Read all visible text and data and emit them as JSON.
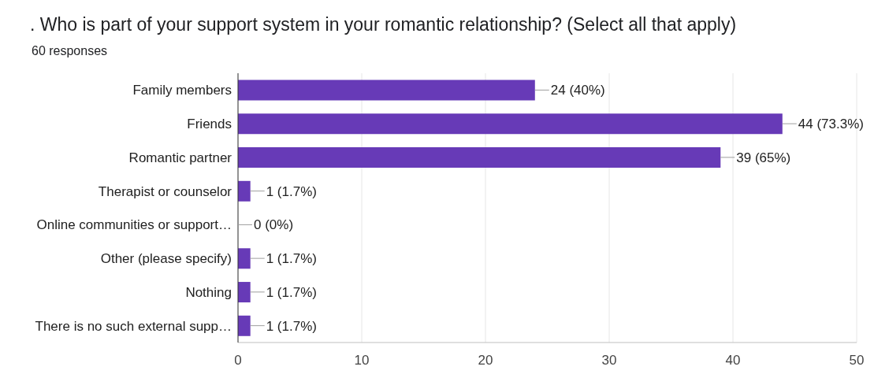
{
  "chart_data": {
    "type": "bar",
    "orientation": "horizontal",
    "title": ". Who is part of your support system in your romantic relationship? (Select all that apply)",
    "subtitle": "60 responses",
    "categories": [
      "Family members",
      "Friends",
      "Romantic partner",
      "Therapist or counselor",
      "Online communities or support…",
      "Other (please specify)",
      "Nothing",
      "There is no such external supp…"
    ],
    "values": [
      24,
      44,
      39,
      1,
      0,
      1,
      1,
      1
    ],
    "value_labels": [
      "24 (40%)",
      "44 (73.3%)",
      "39 (65%)",
      "1 (1.7%)",
      "0 (0%)",
      "1 (1.7%)",
      "1 (1.7%)",
      "1 (1.7%)"
    ],
    "color": "#673ab7",
    "xlim": [
      0,
      50
    ],
    "xticks": [
      0,
      10,
      20,
      30,
      40,
      50
    ],
    "grid": "x",
    "legend": false
  }
}
